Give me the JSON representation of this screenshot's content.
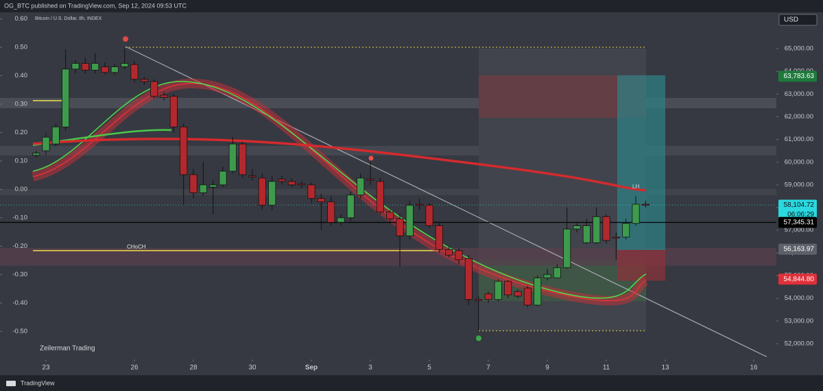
{
  "header": "OG_BTC published on TradingView.com, Sep 12, 2024 09:53 UTC",
  "footer": "TradingView",
  "chart_data": {
    "type": "candlestick",
    "title": "Bitcoin / U.S. Dollar, 8h, INDEX",
    "currency": "USD",
    "watermark": "Zeilerman Trading",
    "annotations": [
      "CHoCH",
      "LH"
    ],
    "countdown": "06:06:29",
    "xlim": [
      -1.558,
      24.72
    ],
    "xticks": [
      {
        "value": 0,
        "label": "23"
      },
      {
        "value": 3,
        "label": "26"
      },
      {
        "value": 5,
        "label": "28"
      },
      {
        "value": 7,
        "label": "30"
      },
      {
        "value": 9,
        "label": "Sep"
      },
      {
        "value": 11,
        "label": "3"
      },
      {
        "value": 13,
        "label": "5"
      },
      {
        "value": 15,
        "label": "7"
      },
      {
        "value": 17,
        "label": "9"
      },
      {
        "value": 19,
        "label": "11"
      },
      {
        "value": 21,
        "label": "13"
      },
      {
        "value": 24,
        "label": "16"
      }
    ],
    "ylim": [
      51305,
      66599
    ],
    "yticks": [
      {
        "value": 52000,
        "label": "52,000.00"
      },
      {
        "value": 53000,
        "label": "53,000.00"
      },
      {
        "value": 54000,
        "label": "54,000.00"
      },
      {
        "value": 55000,
        "label": "55,000.00"
      },
      {
        "value": 56000,
        "label": "56,000.00"
      },
      {
        "value": 57000,
        "label": "57,000.00"
      },
      {
        "value": 58000,
        "label": "58,000.00"
      },
      {
        "value": 59000,
        "label": "59,000.00"
      },
      {
        "value": 60000,
        "label": "60,000.00"
      },
      {
        "value": 61000,
        "label": "61,000.00"
      },
      {
        "value": 62000,
        "label": "62,000.00"
      },
      {
        "value": 63000,
        "label": "63,000.00"
      },
      {
        "value": 64000,
        "label": "64,000.00"
      },
      {
        "value": 65000,
        "label": "65,000.00"
      }
    ],
    "y2lim": [
      -0.599,
      0.623
    ],
    "y2ticks": [
      {
        "value": 0.6,
        "label": "0.60"
      },
      {
        "value": 0.5,
        "label": "0.50"
      },
      {
        "value": 0.4,
        "label": "0.40"
      },
      {
        "value": 0.3,
        "label": "0.30"
      },
      {
        "value": 0.2,
        "label": "0.20"
      },
      {
        "value": 0.1,
        "label": "0.10"
      },
      {
        "value": 0,
        "label": "0.00"
      },
      {
        "value": -0.1,
        "label": "-0.10"
      },
      {
        "value": -0.2,
        "label": "-0.20"
      },
      {
        "value": -0.3,
        "label": "-0.30"
      },
      {
        "value": -0.4,
        "label": "-0.40"
      },
      {
        "value": -0.5,
        "label": "-0.50"
      }
    ],
    "price_labels": [
      {
        "value": 63783.63,
        "label": "63,783.63",
        "color": "#1e7a3c"
      },
      {
        "value": 58104.72,
        "label": "58,104.72",
        "color": "#2ad8e0"
      },
      {
        "value": 57345.31,
        "label": "57,345.31",
        "color": "#000000"
      },
      {
        "value": 56163.97,
        "label": "56,163.97",
        "color": "#5d6069"
      },
      {
        "value": 54844.8,
        "label": "54,844.80",
        "color": "#e0303a"
      }
    ],
    "up_color": "#3e9a4c",
    "down_color": "#b3282d",
    "candles": {
      "x": [
        -0.333,
        0,
        0.333,
        0.667,
        1,
        1.333,
        1.667,
        2,
        2.333,
        2.667,
        3,
        3.333,
        3.667,
        4,
        4.333,
        4.667,
        5,
        5.333,
        5.667,
        6,
        6.333,
        6.667,
        7,
        7.333,
        7.667,
        8,
        8.333,
        8.667,
        9,
        9.333,
        9.667,
        10,
        10.333,
        10.667,
        11,
        11.333,
        11.667,
        12,
        12.333,
        12.667,
        13,
        13.333,
        13.667,
        14,
        14.333,
        14.667,
        15,
        15.333,
        15.667,
        16,
        16.333,
        16.667,
        17,
        17.333,
        17.667,
        18,
        18.333,
        18.667,
        19,
        19.333,
        19.667,
        20,
        20.333
      ],
      "open": [
        60300,
        60500,
        60800,
        61550,
        64100,
        64350,
        64050,
        64200,
        63950,
        64200,
        64300,
        63650,
        63550,
        62950,
        62900,
        61550,
        59450,
        58650,
        58900,
        59000,
        59600,
        60800,
        59400,
        59300,
        58100,
        59250,
        59150,
        59050,
        59000,
        58400,
        58250,
        57350,
        57550,
        58550,
        59250,
        59150,
        57800,
        57500,
        56750,
        58150,
        58100,
        57200,
        56150,
        56100,
        55750,
        53950,
        54200,
        53950,
        54750,
        54300,
        54450,
        53700,
        54900,
        54900,
        55350,
        57050,
        56450,
        56450,
        57600,
        56700,
        56700,
        57300,
        58150
      ],
      "high": [
        60500,
        61300,
        61700,
        64950,
        64500,
        64600,
        64800,
        64400,
        64350,
        65000,
        64450,
        63750,
        63650,
        63100,
        63000,
        61700,
        59700,
        60000,
        59200,
        59800,
        61100,
        60900,
        59700,
        59500,
        59400,
        59400,
        59300,
        59150,
        59100,
        58600,
        58500,
        57700,
        58700,
        59500,
        60000,
        59300,
        57900,
        57700,
        58300,
        58400,
        58200,
        57300,
        56300,
        56200,
        55900,
        54100,
        54300,
        54850,
        54800,
        54400,
        54550,
        55000,
        55300,
        55500,
        58000,
        57300,
        57500,
        58000,
        57700,
        56900,
        57500,
        58500,
        58300
      ],
      "low": [
        60200,
        60300,
        60700,
        61400,
        63900,
        63900,
        63900,
        63850,
        63850,
        64100,
        63500,
        63400,
        62800,
        62700,
        61300,
        58100,
        58400,
        58500,
        57700,
        58900,
        59500,
        59300,
        59200,
        57900,
        57900,
        59000,
        58900,
        58850,
        58200,
        57000,
        57200,
        57200,
        57400,
        58400,
        59000,
        57700,
        57300,
        55400,
        56600,
        57900,
        57100,
        56000,
        55800,
        55500,
        53700,
        52550,
        53800,
        53850,
        54000,
        54000,
        53600,
        53650,
        54800,
        55200,
        55300,
        56900,
        56400,
        56400,
        56400,
        55700,
        56600,
        57200,
        58000
      ],
      "close": [
        60400,
        61100,
        61550,
        64100,
        64350,
        64050,
        64350,
        63950,
        64200,
        64350,
        63650,
        63550,
        62900,
        62850,
        61550,
        59450,
        58650,
        59000,
        59000,
        59600,
        60800,
        59450,
        59350,
        58100,
        59150,
        59150,
        59000,
        59000,
        58400,
        58250,
        57350,
        57550,
        58550,
        59300,
        59200,
        57800,
        57500,
        56750,
        58100,
        58100,
        57200,
        56150,
        55900,
        55700,
        53950,
        53900,
        53950,
        54750,
        54150,
        54100,
        53700,
        54900,
        55050,
        55350,
        57050,
        57200,
        57200,
        57600,
        56550,
        56650,
        57300,
        58150,
        58104.72
      ]
    }
  }
}
